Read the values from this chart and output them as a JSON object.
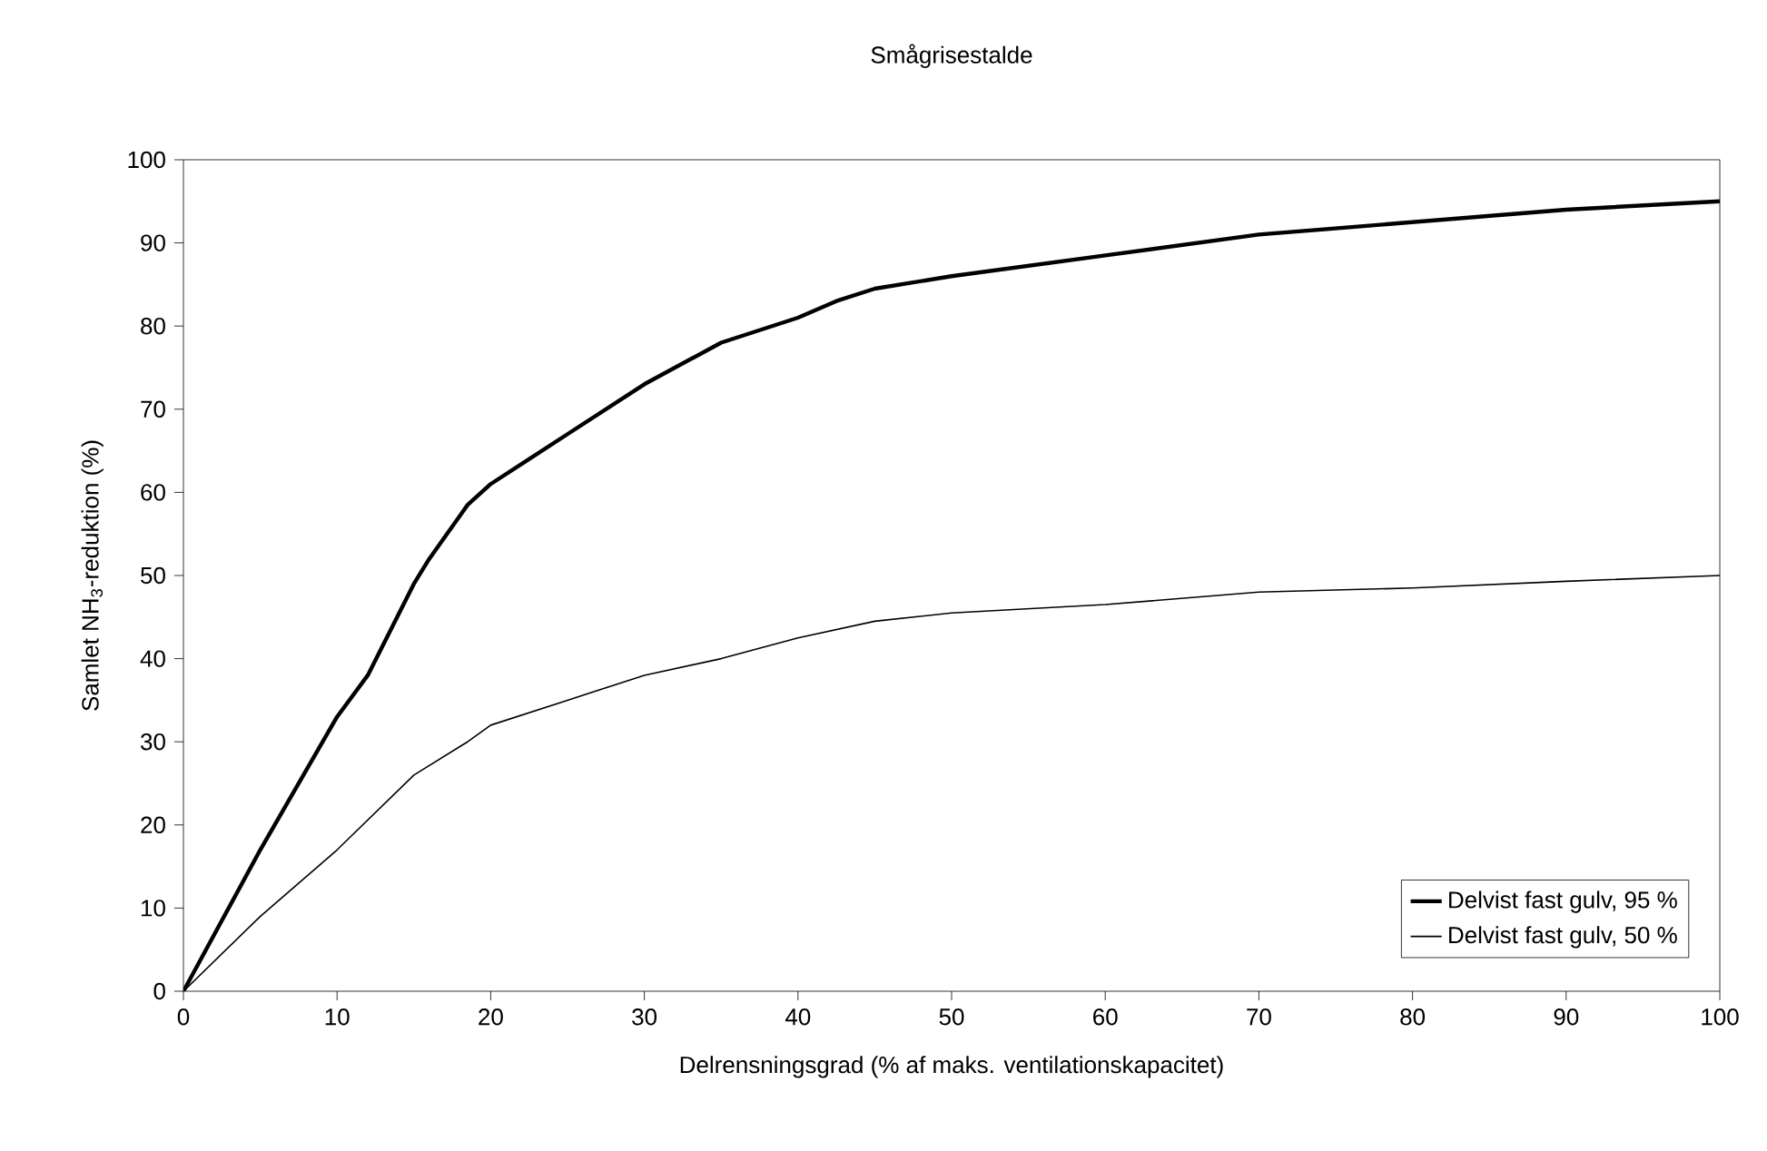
{
  "chart_data": {
    "type": "line",
    "title": "Smågrisestalde",
    "xlabel": "Delrensningsgrad (% af maks. ventilationskapacitet)",
    "ylabel": "Samlet NH$_{3}$-reduktion (%)",
    "xlim": [
      0,
      100
    ],
    "ylim": [
      0,
      100
    ],
    "xticks": [
      0,
      10,
      20,
      30,
      40,
      50,
      60,
      70,
      80,
      90,
      100
    ],
    "yticks": [
      0,
      10,
      20,
      30,
      40,
      50,
      60,
      70,
      80,
      90,
      100
    ],
    "grid": false,
    "legend": "bottom right",
    "marker": "none",
    "line_style": "solid",
    "series": [
      {
        "name": "Delvist fast gulv, 95 %",
        "color": "#000000",
        "x": [
          0,
          5,
          10,
          12,
          15,
          16,
          18.5,
          20,
          25,
          30,
          35,
          40,
          42.5,
          45,
          50,
          60,
          70,
          80,
          90,
          100
        ],
        "values": [
          0,
          17,
          33,
          38,
          49,
          52,
          58.5,
          61,
          67,
          73,
          78,
          81,
          83,
          84.5,
          86,
          88.5,
          91,
          92.5,
          94,
          95
        ]
      },
      {
        "name": "Delvist fast gulv, 50 %",
        "color": "#000000",
        "x": [
          0,
          5,
          10,
          15,
          18.5,
          20,
          25,
          30,
          35,
          40,
          45,
          50,
          60,
          70,
          80,
          90,
          100
        ],
        "values": [
          0,
          9,
          17,
          26,
          30,
          32,
          35,
          38,
          40,
          42.5,
          44.5,
          45.5,
          46.5,
          48,
          48.5,
          49.3,
          50
        ]
      }
    ]
  }
}
